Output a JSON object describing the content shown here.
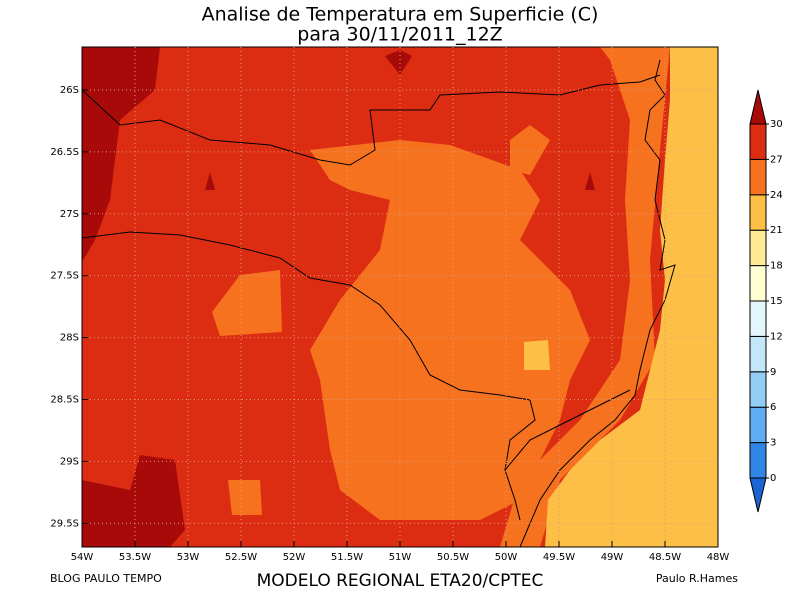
{
  "title": [
    "Analise de Temperatura em Superficie (C)",
    "para 30/11/2011_12Z"
  ],
  "lat_labels": [
    "26S",
    "26.5S",
    "27S",
    "27.5S",
    "28S",
    "28.5S",
    "29S",
    "29.5S"
  ],
  "lon_labels": [
    "54W",
    "53.5W",
    "53W",
    "52.5W",
    "52W",
    "51.5W",
    "51W",
    "50.5W",
    "50W",
    "49.5W",
    "49W",
    "48.5W",
    "48W"
  ],
  "colorbar": {
    "levels": [
      0,
      3,
      6,
      9,
      12,
      15,
      18,
      21,
      24,
      27,
      30
    ],
    "colors": [
      "#1c64d2",
      "#2f86e6",
      "#5eacf2",
      "#92cdf5",
      "#c2e6fa",
      "#e4f6fd",
      "#fffed2",
      "#fee995",
      "#fdbf45",
      "#f6721e",
      "#dc2d13",
      "#a80a0a"
    ]
  },
  "footer": {
    "left": "BLOG PAULO TEMPO",
    "center": "MODELO REGIONAL ETA20/CPTEC",
    "right": "Paulo R.Hames"
  }
}
